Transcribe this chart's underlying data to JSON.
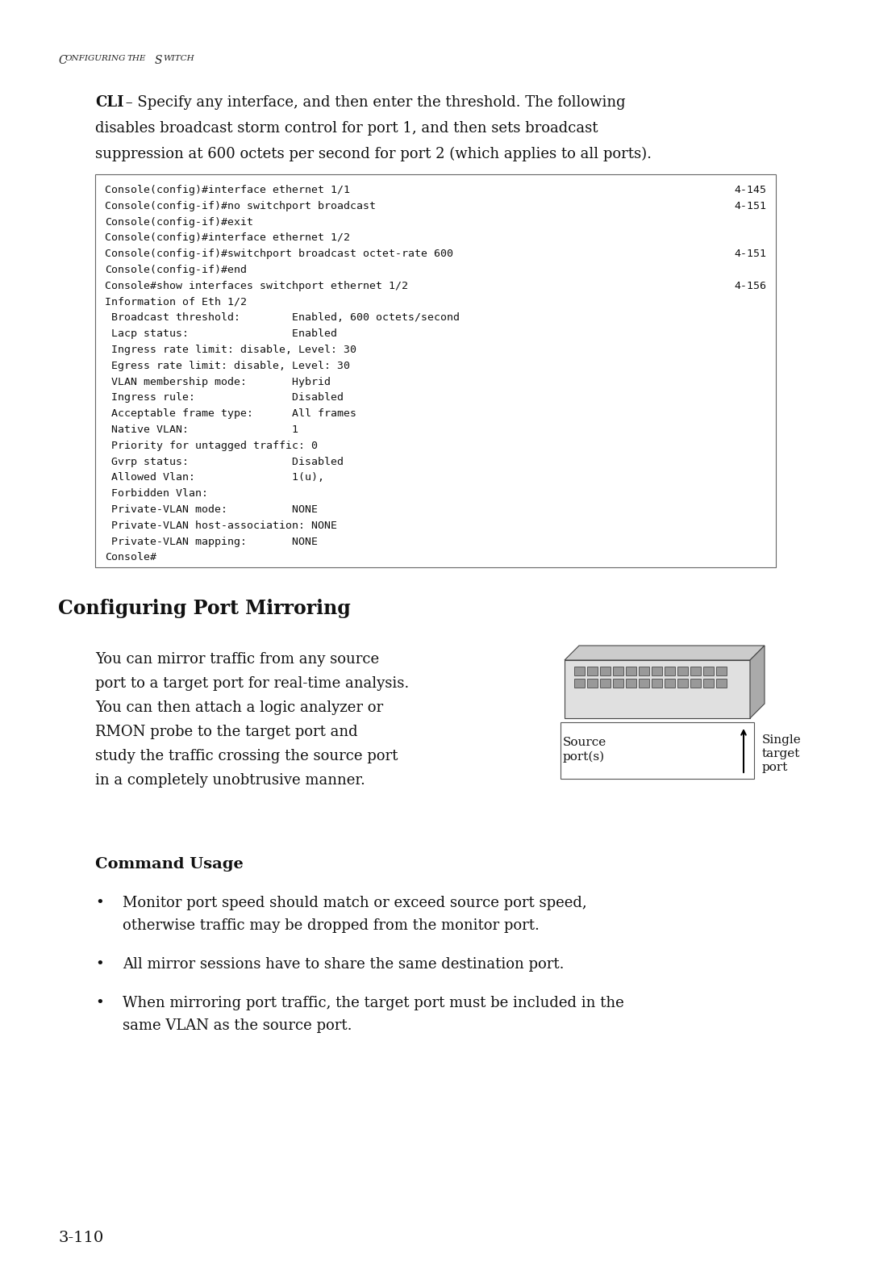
{
  "page_bg": "#ffffff",
  "header_text": "ONFIGURING THE WITCH",
  "header_caps": [
    "C",
    "S"
  ],
  "intro_bold": "CLI",
  "intro_rest": " – Specify any interface, and then enter the threshold. The following",
  "intro_line2": "disables broadcast storm control for port 1, and then sets broadcast",
  "intro_line3": "suppression at 600 octets per second for port 2 (which applies to all ports).",
  "code_lines": [
    {
      "text": "Console(config)#interface ethernet 1/1",
      "ref": "4-145"
    },
    {
      "text": "Console(config-if)#no switchport broadcast",
      "ref": "4-151"
    },
    {
      "text": "Console(config-if)#exit",
      "ref": ""
    },
    {
      "text": "Console(config)#interface ethernet 1/2",
      "ref": ""
    },
    {
      "text": "Console(config-if)#switchport broadcast octet-rate 600",
      "ref": "4-151"
    },
    {
      "text": "Console(config-if)#end",
      "ref": ""
    },
    {
      "text": "Console#show interfaces switchport ethernet 1/2",
      "ref": "4-156"
    },
    {
      "text": "Information of Eth 1/2",
      "ref": ""
    },
    {
      "text": " Broadcast threshold:        Enabled, 600 octets/second",
      "ref": ""
    },
    {
      "text": " Lacp status:                Enabled",
      "ref": ""
    },
    {
      "text": " Ingress rate limit: disable, Level: 30",
      "ref": ""
    },
    {
      "text": " Egress rate limit: disable, Level: 30",
      "ref": ""
    },
    {
      "text": " VLAN membership mode:       Hybrid",
      "ref": ""
    },
    {
      "text": " Ingress rule:               Disabled",
      "ref": ""
    },
    {
      "text": " Acceptable frame type:      All frames",
      "ref": ""
    },
    {
      "text": " Native VLAN:                1",
      "ref": ""
    },
    {
      "text": " Priority for untagged traffic: 0",
      "ref": ""
    },
    {
      "text": " Gvrp status:                Disabled",
      "ref": ""
    },
    {
      "text": " Allowed Vlan:               1(u),",
      "ref": ""
    },
    {
      "text": " Forbidden Vlan:",
      "ref": ""
    },
    {
      "text": " Private-VLAN mode:          NONE",
      "ref": ""
    },
    {
      "text": " Private-VLAN host-association: NONE",
      "ref": ""
    },
    {
      "text": " Private-VLAN mapping:       NONE",
      "ref": ""
    },
    {
      "text": "Console#",
      "ref": ""
    }
  ],
  "section_title": "Configuring Port Mirroring",
  "body_lines": [
    "You can mirror traffic from any source",
    "port to a target port for real-time analysis.",
    "You can then attach a logic analyzer or",
    "RMON probe to the target port and",
    "study the traffic crossing the source port",
    "in a completely unobtrusive manner."
  ],
  "cmd_usage_title": "Command Usage",
  "bullets": [
    [
      "Monitor port speed should match or exceed source port speed,",
      "otherwise traffic may be dropped from the monitor port."
    ],
    [
      "All mirror sessions have to share the same destination port."
    ],
    [
      "When mirroring port traffic, the target port must be included in the",
      "same VLAN as the source port."
    ]
  ],
  "page_number": "3-110",
  "source_label1": "Source",
  "source_label2": "port(s)",
  "target_label1": "Single",
  "target_label2": "target",
  "target_label3": "port"
}
